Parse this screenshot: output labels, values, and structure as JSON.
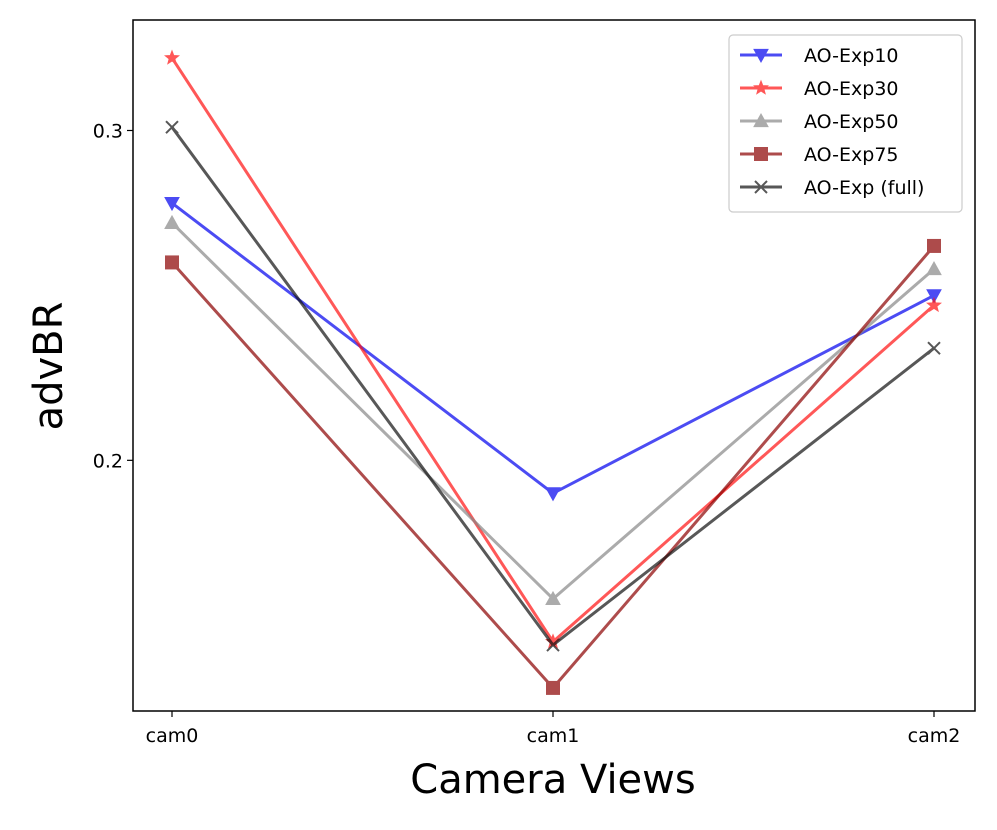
{
  "chart_data": {
    "type": "line",
    "categories": [
      "cam0",
      "cam1",
      "cam2"
    ],
    "xlabel": "Camera Views",
    "ylabel": "advBR",
    "ylim": [
      0.124,
      0.3335
    ],
    "yticks": [
      0.2,
      0.3
    ],
    "ytick_labels": [
      "0.2",
      "0.3"
    ],
    "grid": false,
    "legend_position": "top-right",
    "series": [
      {
        "name": "AO-Exp10",
        "color": "#0000ee",
        "marker": "triangle-down",
        "values": [
          0.278,
          0.19,
          0.25
        ]
      },
      {
        "name": "AO-Exp30",
        "color": "#ff1111",
        "marker": "star",
        "values": [
          0.322,
          0.145,
          0.247
        ]
      },
      {
        "name": "AO-Exp50",
        "color": "#888888",
        "marker": "triangle-up",
        "values": [
          0.272,
          0.158,
          0.258
        ]
      },
      {
        "name": "AO-Exp75",
        "color": "#8b0000",
        "marker": "square",
        "values": [
          0.26,
          0.131,
          0.265
        ]
      },
      {
        "name": "AO-Exp (full)",
        "color": "#111111",
        "marker": "x",
        "values": [
          0.301,
          0.144,
          0.234
        ]
      }
    ]
  }
}
